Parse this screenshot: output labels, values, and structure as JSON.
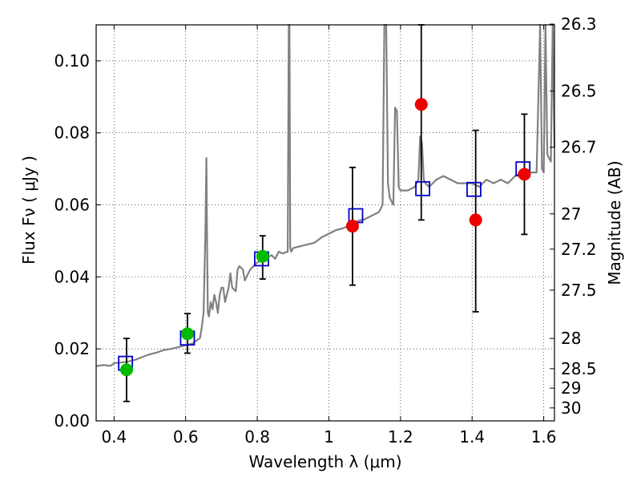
{
  "chart_data": {
    "type": "scatter",
    "xlabel": "Wavelength  λ (μm)",
    "ylabel": "Flux  Fν  ( μJy )",
    "ylabel_right": "Magnitude (AB)",
    "xlim": [
      0.35,
      1.63
    ],
    "ylim": [
      0.0,
      0.11
    ],
    "grid": true,
    "x_ticks": [
      0.4,
      0.6,
      0.8,
      1.0,
      1.2,
      1.4,
      1.6
    ],
    "x_tick_labels": [
      "0.4",
      "0.6",
      "0.8",
      "1",
      "1.2",
      "1.4",
      "1.6"
    ],
    "y_ticks": [
      0.0,
      0.02,
      0.04,
      0.06,
      0.08,
      0.1
    ],
    "y_tick_labels": [
      "0.00",
      "0.02",
      "0.04",
      "0.06",
      "0.08",
      "0.10"
    ],
    "right_ticks": [
      {
        "flux": 0.1102,
        "label": "26.3"
      },
      {
        "flux": 0.0916,
        "label": "26.5"
      },
      {
        "flux": 0.076,
        "label": "26.7"
      },
      {
        "flux": 0.0575,
        "label": "27"
      },
      {
        "flux": 0.0477,
        "label": "27.2"
      },
      {
        "flux": 0.0363,
        "label": "27.5"
      },
      {
        "flux": 0.0229,
        "label": "28"
      },
      {
        "flux": 0.0145,
        "label": "28.5"
      },
      {
        "flux": 0.0091,
        "label": "29"
      },
      {
        "flux": 0.0036,
        "label": "30"
      }
    ],
    "series": [
      {
        "type": "line",
        "color": "#808080",
        "x": [
          0.35,
          0.37,
          0.39,
          0.4,
          0.42,
          0.44,
          0.46,
          0.48,
          0.5,
          0.52,
          0.54,
          0.56,
          0.58,
          0.6,
          0.62,
          0.63,
          0.64,
          0.645,
          0.65,
          0.655,
          0.658,
          0.66,
          0.662,
          0.665,
          0.67,
          0.675,
          0.68,
          0.685,
          0.69,
          0.695,
          0.7,
          0.705,
          0.71,
          0.72,
          0.725,
          0.73,
          0.74,
          0.745,
          0.75,
          0.76,
          0.765,
          0.77,
          0.78,
          0.79,
          0.8,
          0.81,
          0.82,
          0.83,
          0.84,
          0.85,
          0.86,
          0.87,
          0.885,
          0.888,
          0.89,
          0.892,
          0.895,
          0.9,
          0.92,
          0.94,
          0.96,
          0.98,
          1.0,
          1.02,
          1.04,
          1.06,
          1.08,
          1.1,
          1.12,
          1.14,
          1.15,
          1.155,
          1.16,
          1.165,
          1.17,
          1.18,
          1.185,
          1.19,
          1.195,
          1.2,
          1.22,
          1.24,
          1.25,
          1.255,
          1.26,
          1.265,
          1.27,
          1.28,
          1.3,
          1.32,
          1.34,
          1.36,
          1.38,
          1.4,
          1.42,
          1.44,
          1.46,
          1.48,
          1.5,
          1.52,
          1.54,
          1.56,
          1.58,
          1.59,
          1.595,
          1.6,
          1.605,
          1.61,
          1.62,
          1.625,
          1.63
        ],
        "y": [
          0.0152,
          0.0155,
          0.0153,
          0.016,
          0.0162,
          0.0165,
          0.017,
          0.0178,
          0.0185,
          0.019,
          0.0197,
          0.02,
          0.0205,
          0.021,
          0.0215,
          0.0223,
          0.023,
          0.026,
          0.03,
          0.052,
          0.073,
          0.048,
          0.03,
          0.029,
          0.033,
          0.031,
          0.035,
          0.033,
          0.03,
          0.035,
          0.037,
          0.037,
          0.033,
          0.037,
          0.041,
          0.037,
          0.036,
          0.042,
          0.043,
          0.042,
          0.039,
          0.04,
          0.042,
          0.043,
          0.044,
          0.0445,
          0.045,
          0.0455,
          0.046,
          0.045,
          0.047,
          0.0465,
          0.047,
          0.11,
          0.11,
          0.048,
          0.047,
          0.048,
          0.0485,
          0.049,
          0.0495,
          0.051,
          0.052,
          0.053,
          0.0535,
          0.0545,
          0.0555,
          0.056,
          0.057,
          0.058,
          0.06,
          0.11,
          0.11,
          0.066,
          0.062,
          0.06,
          0.087,
          0.086,
          0.065,
          0.064,
          0.064,
          0.065,
          0.067,
          0.079,
          0.077,
          0.067,
          0.066,
          0.065,
          0.067,
          0.068,
          0.067,
          0.066,
          0.066,
          0.066,
          0.065,
          0.067,
          0.066,
          0.067,
          0.066,
          0.068,
          0.069,
          0.069,
          0.069,
          0.11,
          0.07,
          0.069,
          0.11,
          0.074,
          0.072,
          0.11,
          0.076
        ]
      },
      {
        "type": "errorbar",
        "color": "#000000",
        "x": [
          0.435,
          0.605,
          0.815,
          1.066,
          1.258,
          1.41,
          1.546
        ],
        "low": [
          0.0054,
          0.0188,
          0.0394,
          0.0377,
          0.0558,
          0.0303,
          0.0518
        ],
        "high": [
          0.0229,
          0.0298,
          0.0514,
          0.0704,
          0.11,
          0.0807,
          0.0852
        ]
      },
      {
        "type": "marker",
        "marker": "square-open",
        "color": "#0000cc",
        "x": [
          0.432,
          0.605,
          0.812,
          1.075,
          1.262,
          1.405,
          1.542
        ],
        "y": [
          0.016,
          0.023,
          0.045,
          0.057,
          0.0645,
          0.0643,
          0.07
        ]
      },
      {
        "type": "marker",
        "marker": "circle",
        "color": "#00bb00",
        "x": [
          0.435,
          0.605,
          0.815
        ],
        "y": [
          0.0142,
          0.0242,
          0.0457
        ]
      },
      {
        "type": "marker",
        "marker": "circle",
        "color": "#ee0000",
        "x": [
          1.066,
          1.258,
          1.41,
          1.546
        ],
        "y": [
          0.0541,
          0.0879,
          0.0558,
          0.0685
        ]
      }
    ]
  }
}
